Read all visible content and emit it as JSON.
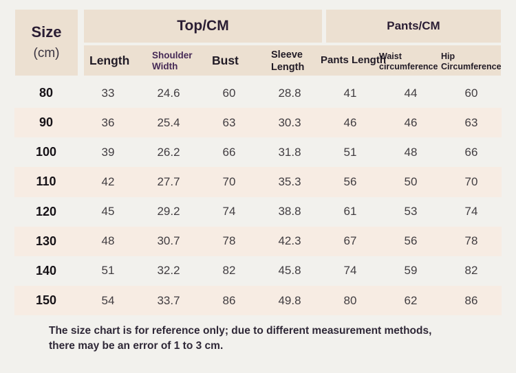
{
  "header": {
    "size_label": "Size",
    "size_unit": "(cm)",
    "top_group": "Top/CM",
    "pants_group": "Pants/CM"
  },
  "chart_data": {
    "type": "table",
    "row_header": "Size (cm)",
    "column_groups": [
      {
        "label": "Top/CM",
        "span": 4
      },
      {
        "label": "Pants/CM",
        "span": 3
      }
    ],
    "columns": [
      "Length",
      "Shoulder Width",
      "Bust",
      "Sleeve Length",
      "Pants Length",
      "Waist circumference",
      "Hip Circumference"
    ],
    "rows": [
      {
        "size": "80",
        "values": [
          "33",
          "24.6",
          "60",
          "28.8",
          "41",
          "44",
          "60"
        ]
      },
      {
        "size": "90",
        "values": [
          "36",
          "25.4",
          "63",
          "30.3",
          "46",
          "46",
          "63"
        ]
      },
      {
        "size": "100",
        "values": [
          "39",
          "26.2",
          "66",
          "31.8",
          "51",
          "48",
          "66"
        ]
      },
      {
        "size": "110",
        "values": [
          "42",
          "27.7",
          "70",
          "35.3",
          "56",
          "50",
          "70"
        ]
      },
      {
        "size": "120",
        "values": [
          "45",
          "29.2",
          "74",
          "38.8",
          "61",
          "53",
          "74"
        ]
      },
      {
        "size": "130",
        "values": [
          "48",
          "30.7",
          "78",
          "42.3",
          "67",
          "56",
          "78"
        ]
      },
      {
        "size": "140",
        "values": [
          "51",
          "32.2",
          "82",
          "45.8",
          "74",
          "59",
          "82"
        ]
      },
      {
        "size": "150",
        "values": [
          "54",
          "33.7",
          "86",
          "49.8",
          "80",
          "62",
          "86"
        ]
      }
    ]
  },
  "footer": {
    "line1": "The size chart is for reference only; due to different measurement methods,",
    "line2": "there may be an error of 1 to 3 cm."
  },
  "colors": {
    "page_bg": "#f2f1ed",
    "header_bg": "#ece0d1",
    "stripe_bg": "#f7ece3",
    "header_text": "#2a1d33",
    "accent_text": "#462a56"
  }
}
